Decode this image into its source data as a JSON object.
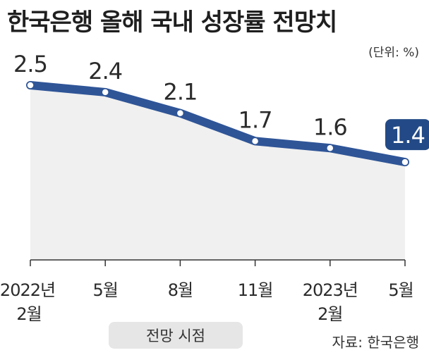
{
  "chart_data": {
    "type": "area",
    "title": "한국은행 올해 국내 성장률 전망치",
    "unit_label": "(단위: %)",
    "xlabel": "전망 시점",
    "source": "자료: 한국은행",
    "categories": [
      [
        "2022년",
        "2월"
      ],
      [
        "5월"
      ],
      [
        "8월"
      ],
      [
        "11월"
      ],
      [
        "2023년",
        "2월"
      ],
      [
        "5월"
      ]
    ],
    "values": [
      2.5,
      2.4,
      2.1,
      1.7,
      1.6,
      1.4
    ],
    "value_labels": [
      "2.5",
      "2.4",
      "2.1",
      "1.7",
      "1.6",
      "1.4"
    ],
    "ylim": [
      0,
      2.5
    ],
    "highlight_index": 5,
    "grid": false,
    "colors": {
      "line": "#2f5597",
      "area": "#f0f0f0",
      "point": "#ffffff",
      "badge": "#234a86"
    }
  }
}
